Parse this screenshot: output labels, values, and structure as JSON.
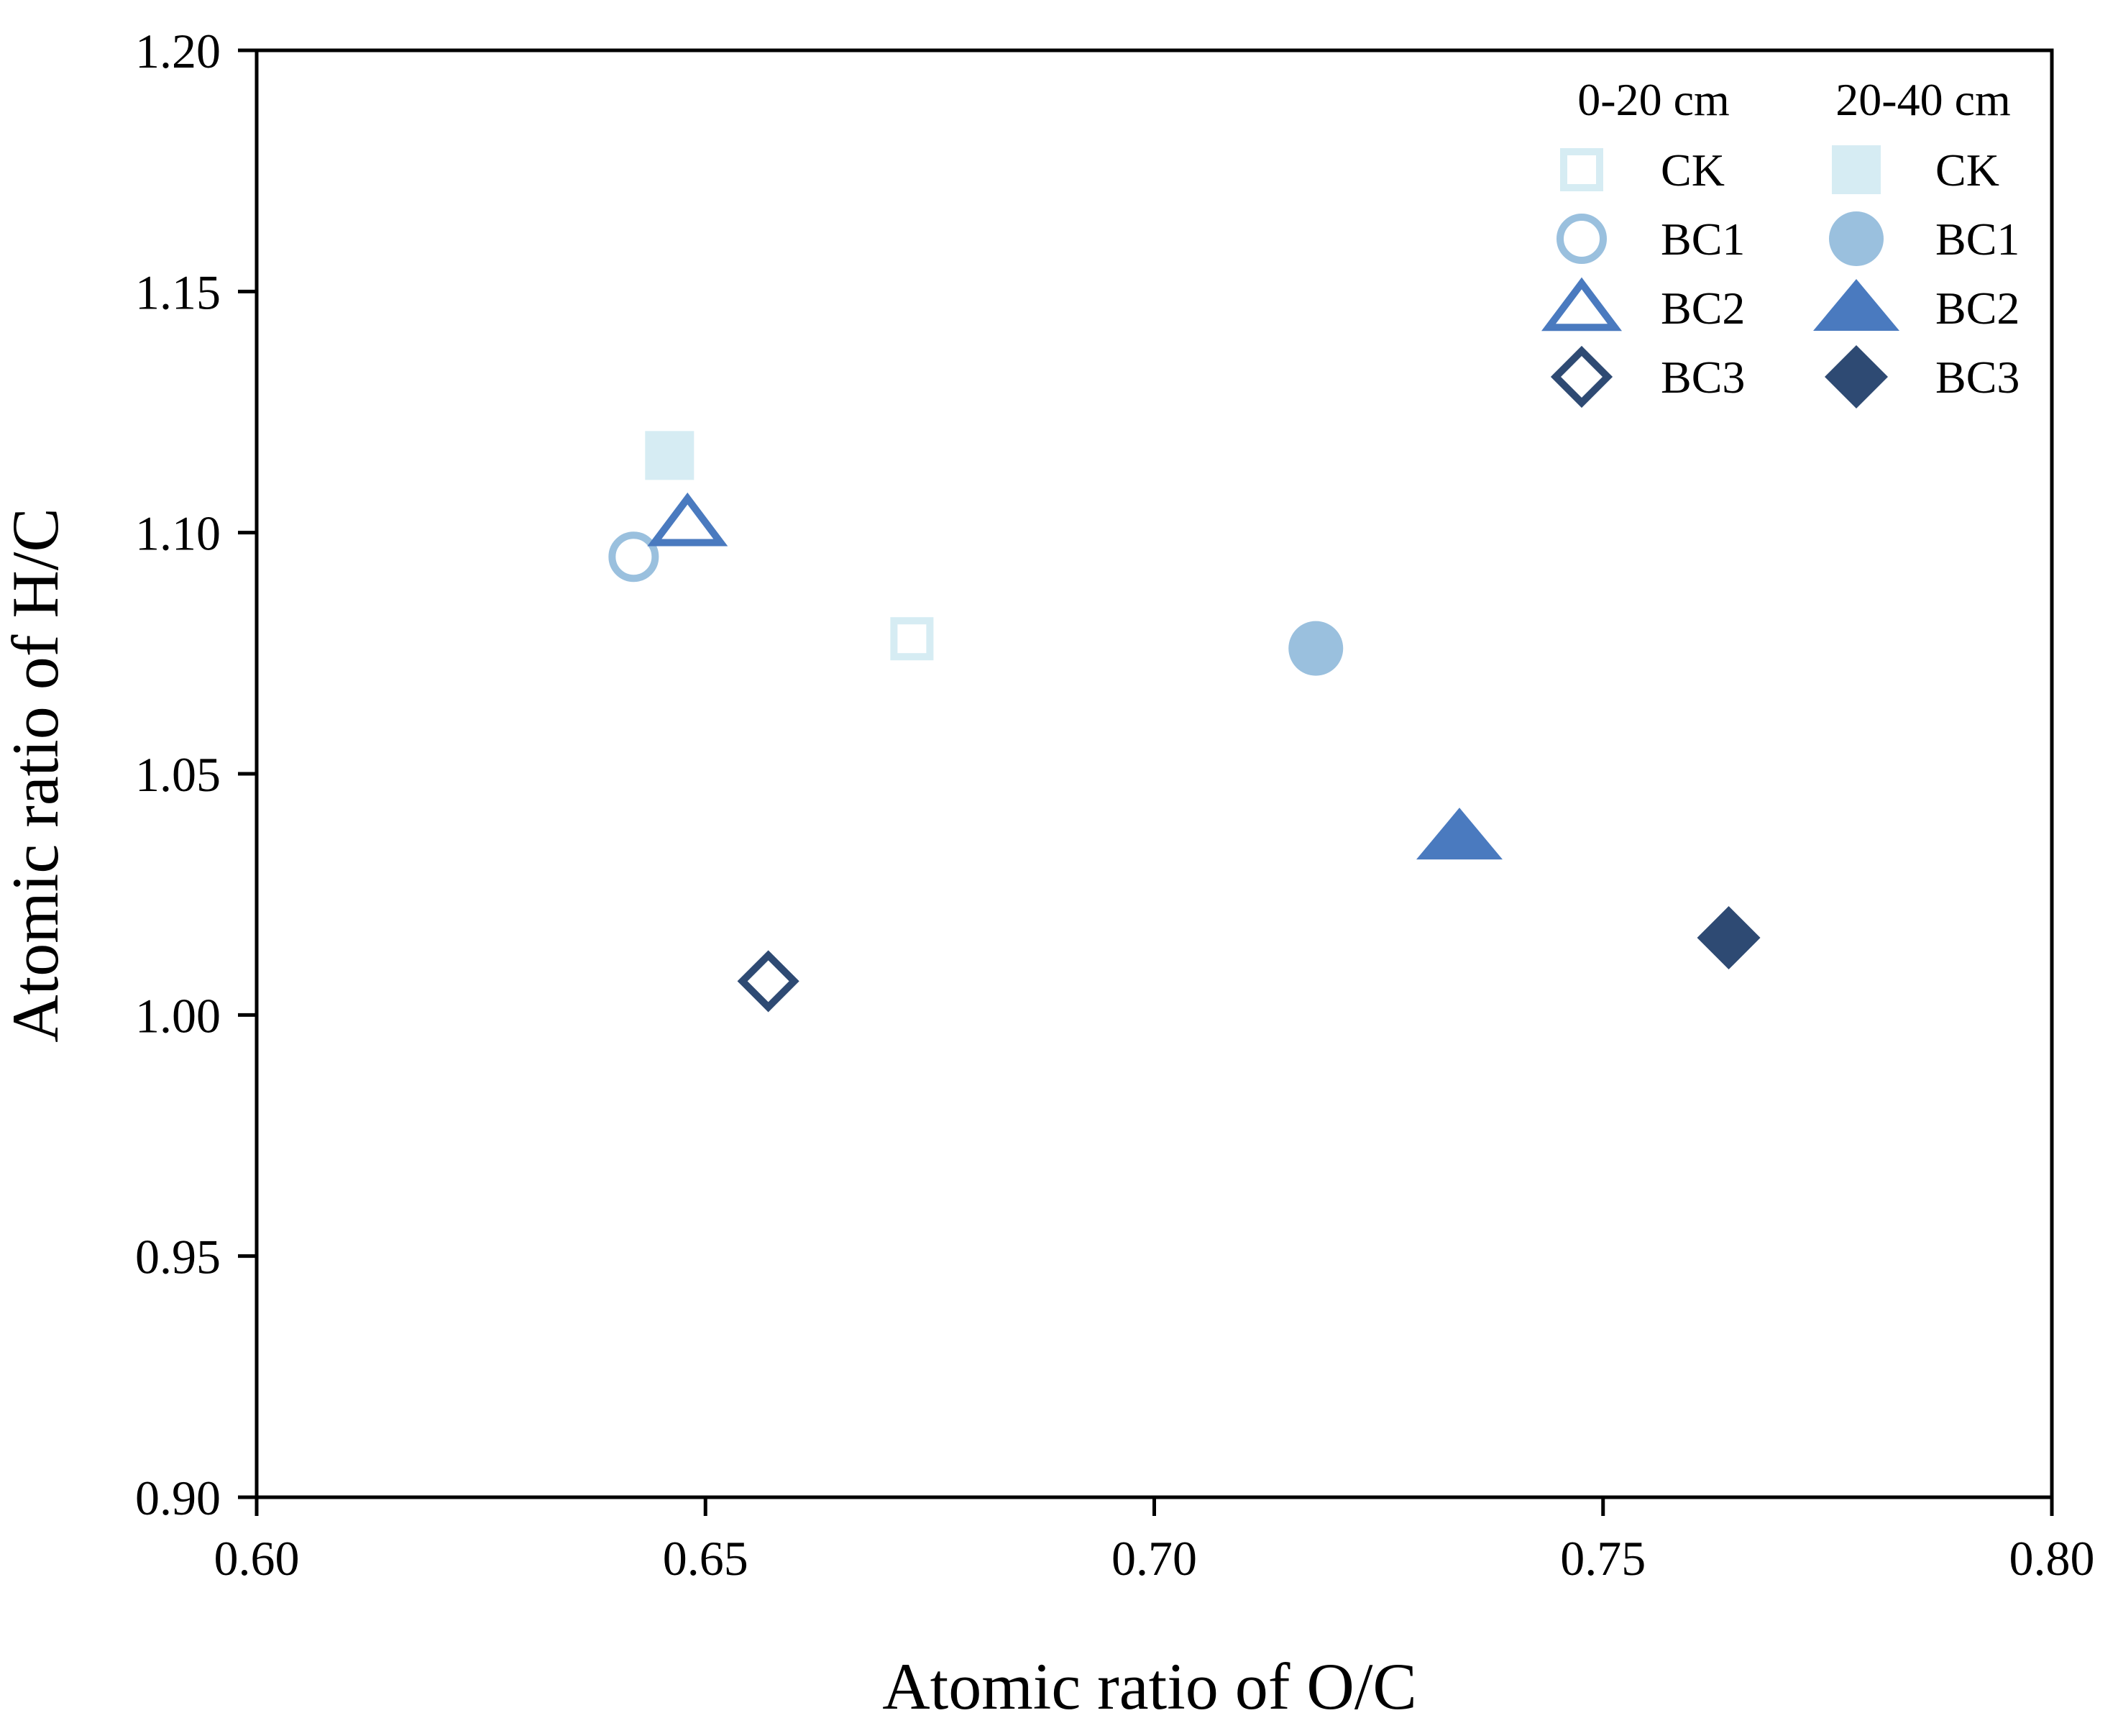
{
  "chart_data": {
    "type": "scatter",
    "title": "",
    "xlabel": "Atomic ratio of O/C",
    "ylabel": "Atomic ratio of H/C",
    "xlim": [
      0.6,
      0.8
    ],
    "ylim": [
      0.9,
      1.2
    ],
    "xticks": [
      "0.60",
      "0.65",
      "0.70",
      "0.75",
      "0.80"
    ],
    "yticks": [
      "0.90",
      "0.95",
      "1.00",
      "1.05",
      "1.10",
      "1.15",
      "1.20"
    ],
    "grid": false,
    "legend_position": "top-right",
    "legend_groups": [
      {
        "title": "0-20 cm",
        "filled": false
      },
      {
        "title": "20-40 cm",
        "filled": true
      }
    ],
    "series": [
      {
        "name": "CK",
        "depth": "0-20 cm",
        "marker": "square",
        "filled": false,
        "color": "#d6ecf3",
        "x": 0.673,
        "y": 1.078
      },
      {
        "name": "BC1",
        "depth": "0-20 cm",
        "marker": "circle",
        "filled": false,
        "color": "#9ac0de",
        "x": 0.642,
        "y": 1.095
      },
      {
        "name": "BC2",
        "depth": "0-20 cm",
        "marker": "triangle",
        "filled": false,
        "color": "#4a7abf",
        "x": 0.648,
        "y": 1.102
      },
      {
        "name": "BC3",
        "depth": "0-20 cm",
        "marker": "diamond",
        "filled": false,
        "color": "#2e4a73",
        "x": 0.657,
        "y": 1.007
      },
      {
        "name": "CK",
        "depth": "20-40 cm",
        "marker": "square",
        "filled": true,
        "color": "#d6ecf3",
        "x": 0.646,
        "y": 1.116
      },
      {
        "name": "BC1",
        "depth": "20-40 cm",
        "marker": "circle",
        "filled": true,
        "color": "#9ac0de",
        "x": 0.718,
        "y": 1.076
      },
      {
        "name": "BC2",
        "depth": "20-40 cm",
        "marker": "triangle",
        "filled": true,
        "color": "#4a7abf",
        "x": 0.734,
        "y": 1.037
      },
      {
        "name": "BC3",
        "depth": "20-40 cm",
        "marker": "diamond",
        "filled": true,
        "color": "#2e4a73",
        "x": 0.764,
        "y": 1.016
      }
    ]
  }
}
